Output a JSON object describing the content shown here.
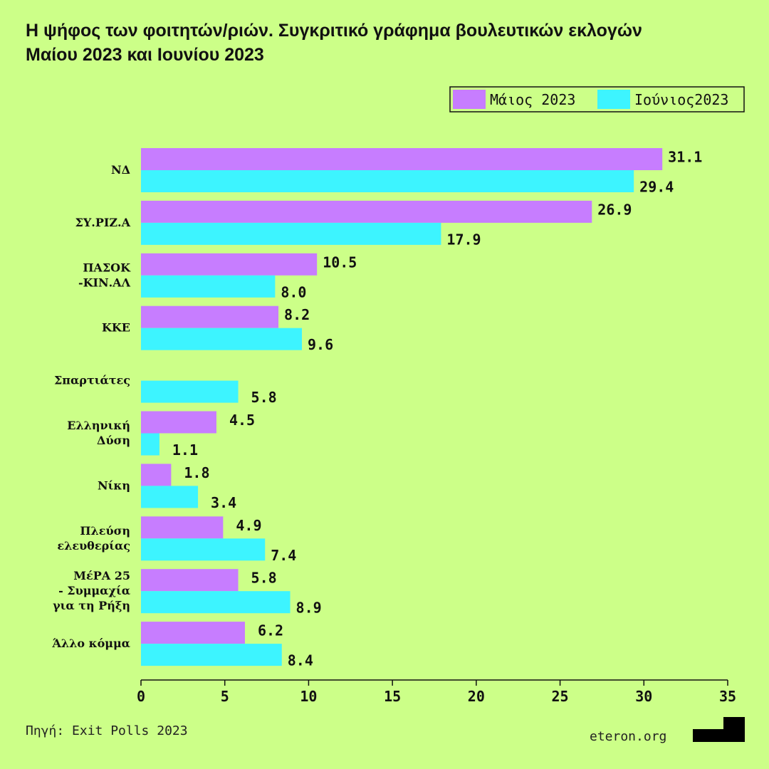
{
  "chart_data": {
    "type": "barh",
    "title": "Η ψήφος των φοιτητών/ριών. Συγκριτικό γράφημα βουλευτικών εκλογών Μαίου 2023 και Ιουνίου 2023",
    "categories": [
      "ΝΔ",
      "ΣΥ.ΡΙΖ.Α",
      "ΠΑΣΟΚ\n-ΚΙΝ.ΑΛ",
      "ΚΚΕ",
      "Σπαρτιάτες",
      "Ελληνική\nΔύση",
      "Νίκη",
      "Πλεύση\nελευθερίας",
      "ΜέΡΑ 25\n- Συμμαχία\nγια τη Ρήξη",
      "Άλλο κόμμα"
    ],
    "series": [
      {
        "name": "Μάιος 2023",
        "color": "#c77dff",
        "values": [
          31.1,
          26.9,
          10.5,
          8.2,
          null,
          4.5,
          1.8,
          4.9,
          5.8,
          6.2
        ],
        "value_labels": [
          "31.1",
          "26.9",
          "10.5",
          "8.2",
          null,
          "4.5",
          "1.8",
          "4.9",
          "5.8",
          "6.2"
        ]
      },
      {
        "name": "Ιούνιος2023",
        "color": "#3df4ff",
        "values": [
          29.4,
          17.9,
          8,
          9.6,
          5.8,
          1.1,
          3.4,
          7.4,
          8.9,
          8.4
        ],
        "value_labels": [
          "29.4",
          "17.9",
          "8.0",
          "9.6",
          "5.8",
          "1.1",
          "3.4",
          "7.4",
          "8.9",
          "8.4"
        ]
      }
    ],
    "xlim": [
      0,
      35
    ],
    "xticks": [
      0,
      5,
      10,
      15,
      20,
      25,
      30,
      35
    ],
    "legend": "top-right",
    "source": "Πηγή: Exit Polls 2023",
    "brand": "eteron.org"
  }
}
